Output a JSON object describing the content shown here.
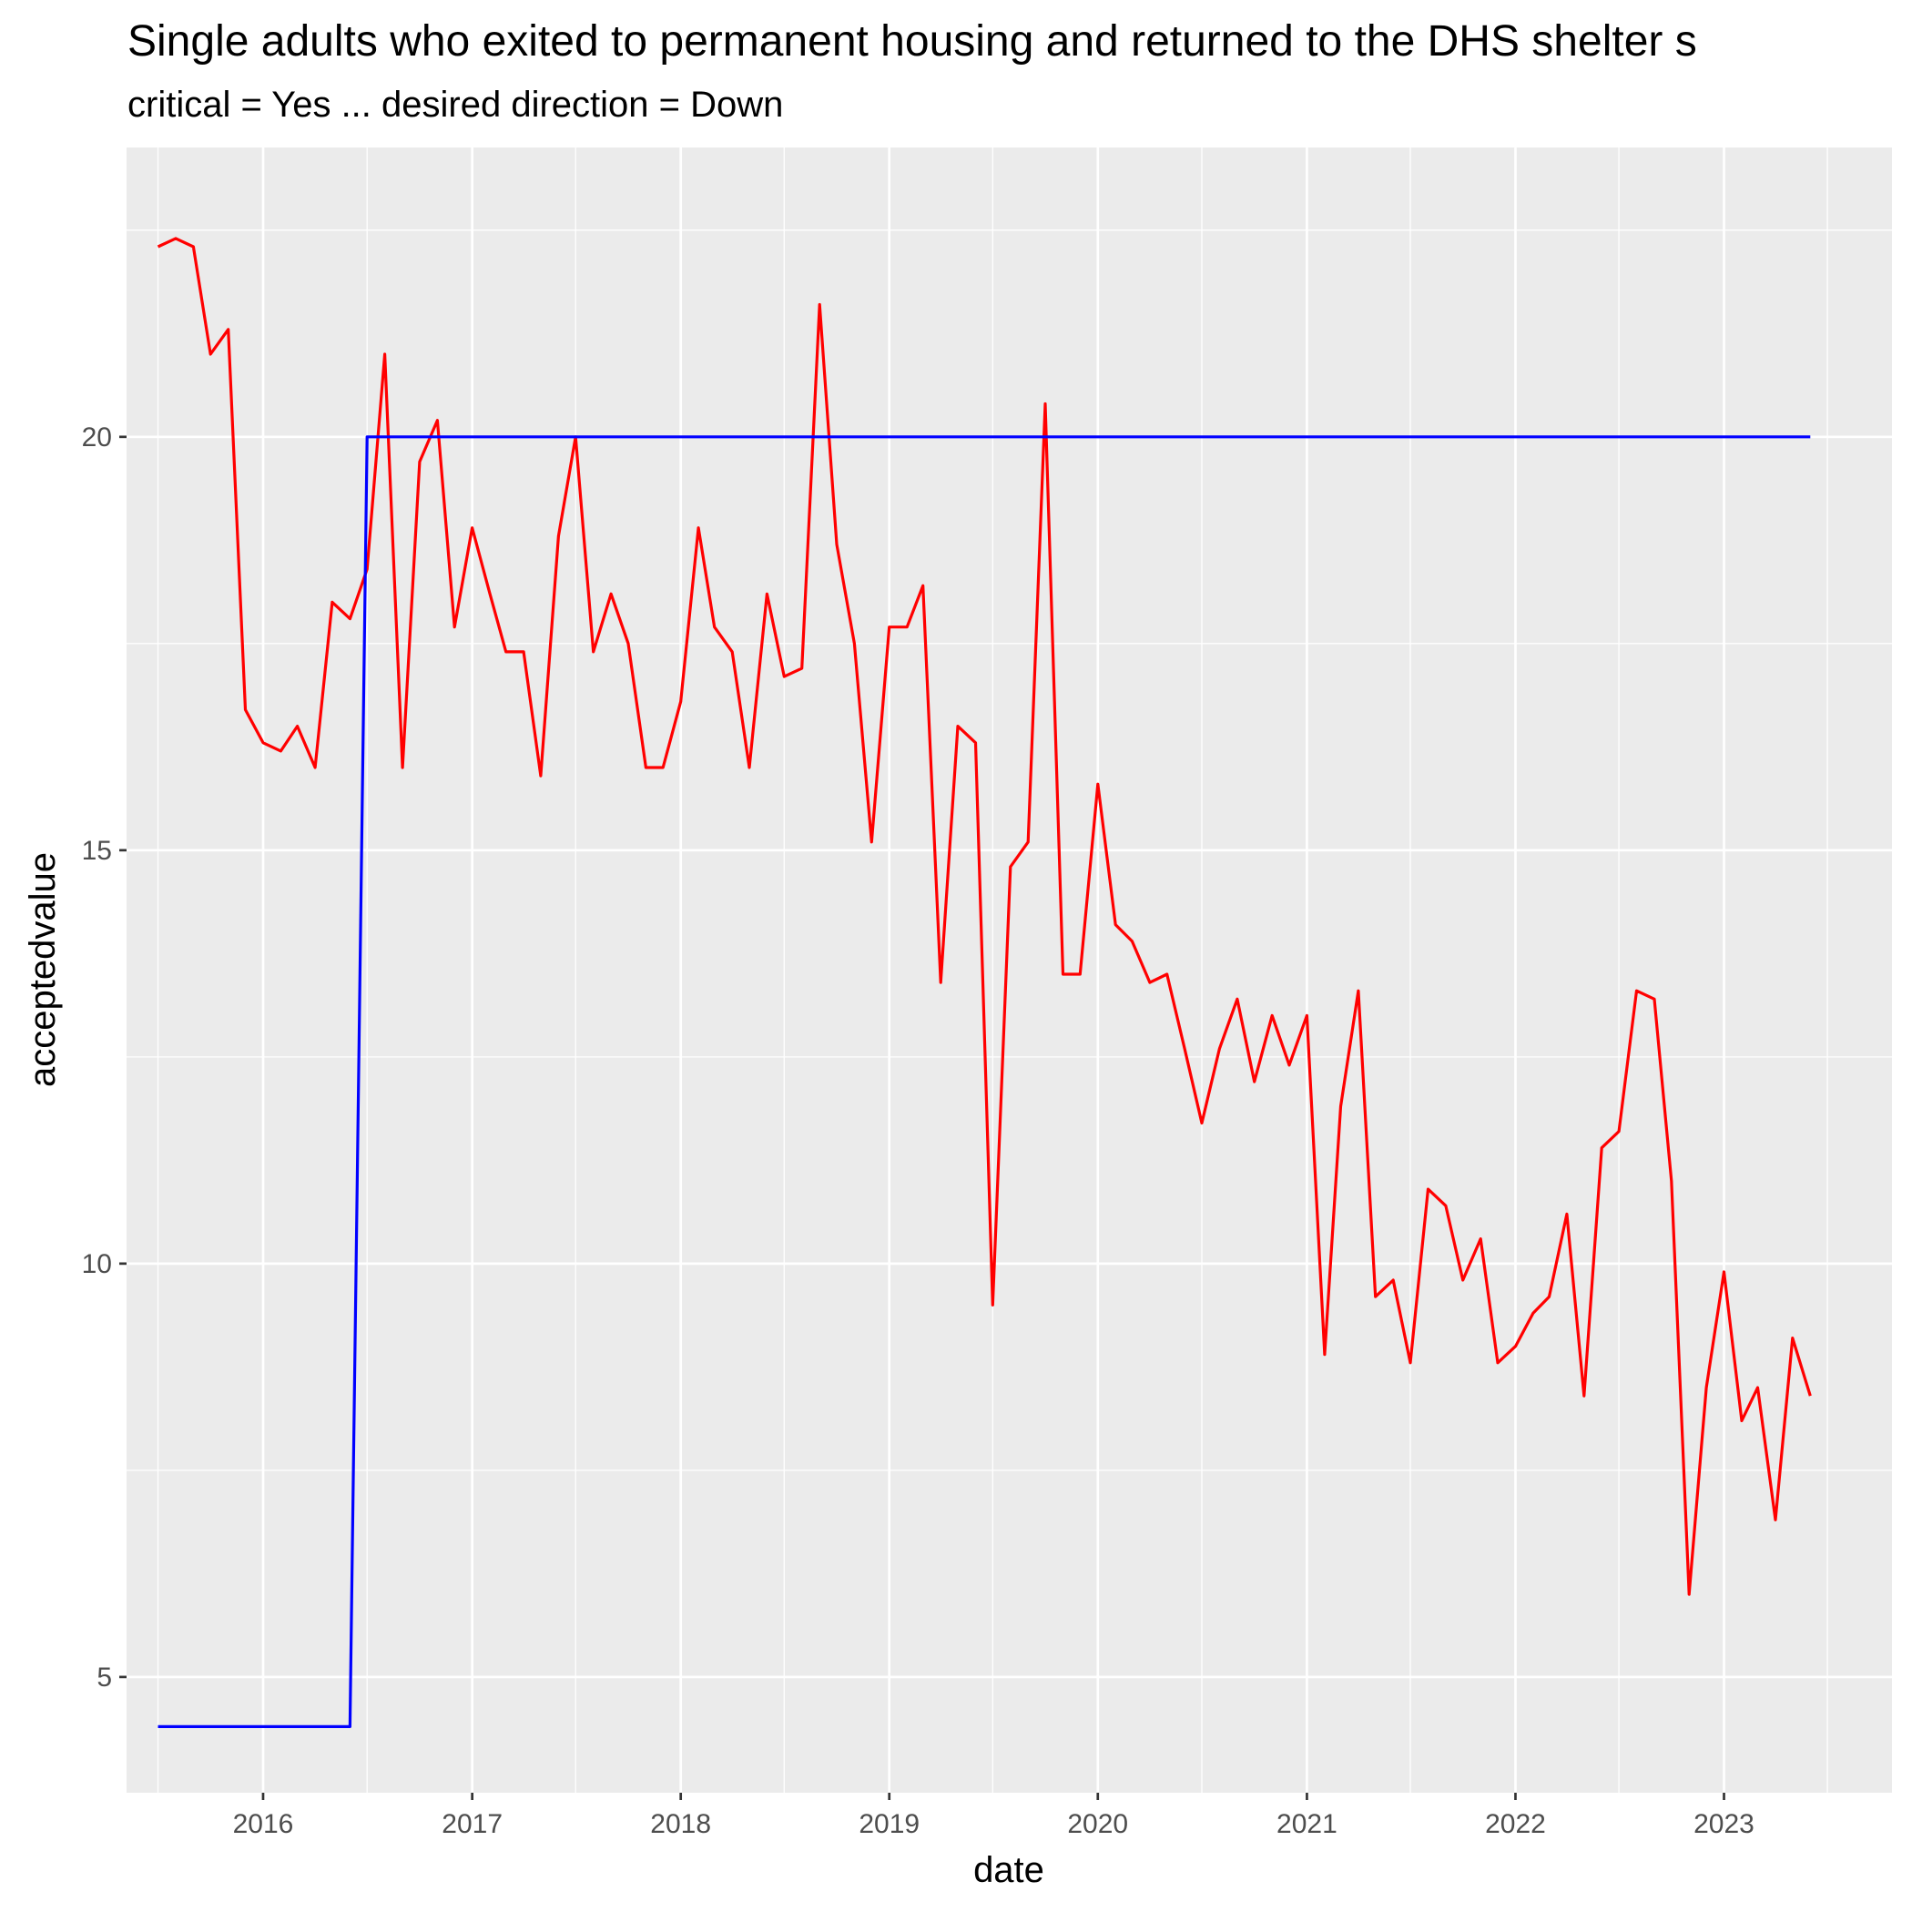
{
  "chart_data": {
    "type": "line",
    "title": "Single adults who exited to permanent housing and returned to the DHS shelter s",
    "subtitle": "critical = Yes ... desired direction = Down",
    "xlabel": "date",
    "ylabel": "acceptedvalue",
    "x_ticks": [
      "2016",
      "2017",
      "2018",
      "2019",
      "2020",
      "2021",
      "2022",
      "2023"
    ],
    "y_ticks": [
      5,
      10,
      15,
      20
    ],
    "xlim": [
      "2015-05-07",
      "2023-10-22"
    ],
    "ylim": [
      3.6,
      23.5
    ],
    "grid": true,
    "legend": "none",
    "colors": {
      "panel": "#EBEBEB",
      "grid": "#FFFFFF",
      "accepted": "#FF0000",
      "target": "#0000FF",
      "ticks": "#4D4D4D"
    },
    "series": [
      {
        "color": "#FF0000",
        "x": [
          "2015-07-01",
          "2015-08-01",
          "2015-09-01",
          "2015-10-01",
          "2015-11-01",
          "2015-12-01",
          "2016-01-01",
          "2016-02-01",
          "2016-03-01",
          "2016-04-01",
          "2016-05-01",
          "2016-06-01",
          "2016-07-01",
          "2016-08-01",
          "2016-09-01",
          "2016-10-01",
          "2016-11-01",
          "2016-12-01",
          "2017-01-01",
          "2017-02-01",
          "2017-03-01",
          "2017-04-01",
          "2017-05-01",
          "2017-06-01",
          "2017-07-01",
          "2017-08-01",
          "2017-09-01",
          "2017-10-01",
          "2017-11-01",
          "2017-12-01",
          "2018-01-01",
          "2018-02-01",
          "2018-03-01",
          "2018-04-01",
          "2018-05-01",
          "2018-06-01",
          "2018-07-01",
          "2018-08-01",
          "2018-09-01",
          "2018-10-01",
          "2018-11-01",
          "2018-12-01",
          "2019-01-01",
          "2019-02-01",
          "2019-03-01",
          "2019-04-01",
          "2019-05-01",
          "2019-06-01",
          "2019-07-01",
          "2019-08-01",
          "2019-09-01",
          "2019-10-01",
          "2019-11-01",
          "2019-12-01",
          "2020-01-01",
          "2020-02-01",
          "2020-03-01",
          "2020-04-01",
          "2020-05-01",
          "2020-06-01",
          "2020-07-01",
          "2020-08-01",
          "2020-09-01",
          "2020-10-01",
          "2020-11-01",
          "2020-12-01",
          "2021-01-01",
          "2021-02-01",
          "2021-03-01",
          "2021-04-01",
          "2021-05-01",
          "2021-06-01",
          "2021-07-01",
          "2021-08-01",
          "2021-09-01",
          "2021-10-01",
          "2021-11-01",
          "2021-12-01",
          "2022-01-01",
          "2022-02-01",
          "2022-03-01",
          "2022-04-01",
          "2022-05-01",
          "2022-06-01",
          "2022-07-01",
          "2022-08-01",
          "2022-09-01",
          "2022-10-01",
          "2022-11-01",
          "2022-12-01",
          "2023-01-01",
          "2023-02-01",
          "2023-03-01",
          "2023-04-01",
          "2023-05-01",
          "2023-06-01"
        ],
        "values": [
          22.3,
          22.4,
          22.3,
          21.0,
          21.3,
          16.7,
          16.3,
          16.2,
          16.5,
          16.0,
          18.0,
          17.8,
          18.4,
          21.0,
          16.0,
          19.7,
          20.2,
          17.7,
          18.9,
          18.1,
          17.4,
          17.4,
          15.9,
          18.8,
          20.0,
          17.4,
          18.1,
          17.5,
          16.0,
          16.0,
          16.8,
          18.9,
          17.7,
          17.4,
          16.0,
          18.1,
          17.1,
          17.2,
          21.6,
          18.7,
          17.5,
          15.1,
          17.7,
          17.7,
          18.2,
          13.4,
          16.5,
          16.3,
          9.5,
          14.8,
          15.1,
          20.4,
          13.5,
          13.5,
          15.8,
          14.1,
          13.9,
          13.4,
          13.5,
          12.6,
          11.7,
          12.6,
          13.2,
          12.2,
          13.0,
          12.4,
          13.0,
          8.9,
          11.9,
          13.3,
          9.6,
          9.8,
          8.8,
          10.9,
          10.7,
          9.8,
          10.3,
          8.8,
          9.0,
          9.4,
          9.6,
          10.6,
          8.4,
          11.4,
          11.6,
          13.3,
          13.2,
          11.0,
          6.0,
          8.5,
          9.9,
          8.1,
          8.5,
          6.9,
          9.1,
          8.4
        ]
      },
      {
        "color": "#0000FF",
        "x": [
          "2015-07-01",
          "2016-06-01",
          "2016-07-01",
          "2023-06-01"
        ],
        "values": [
          4.4,
          4.4,
          20.0,
          20.0
        ]
      }
    ]
  }
}
